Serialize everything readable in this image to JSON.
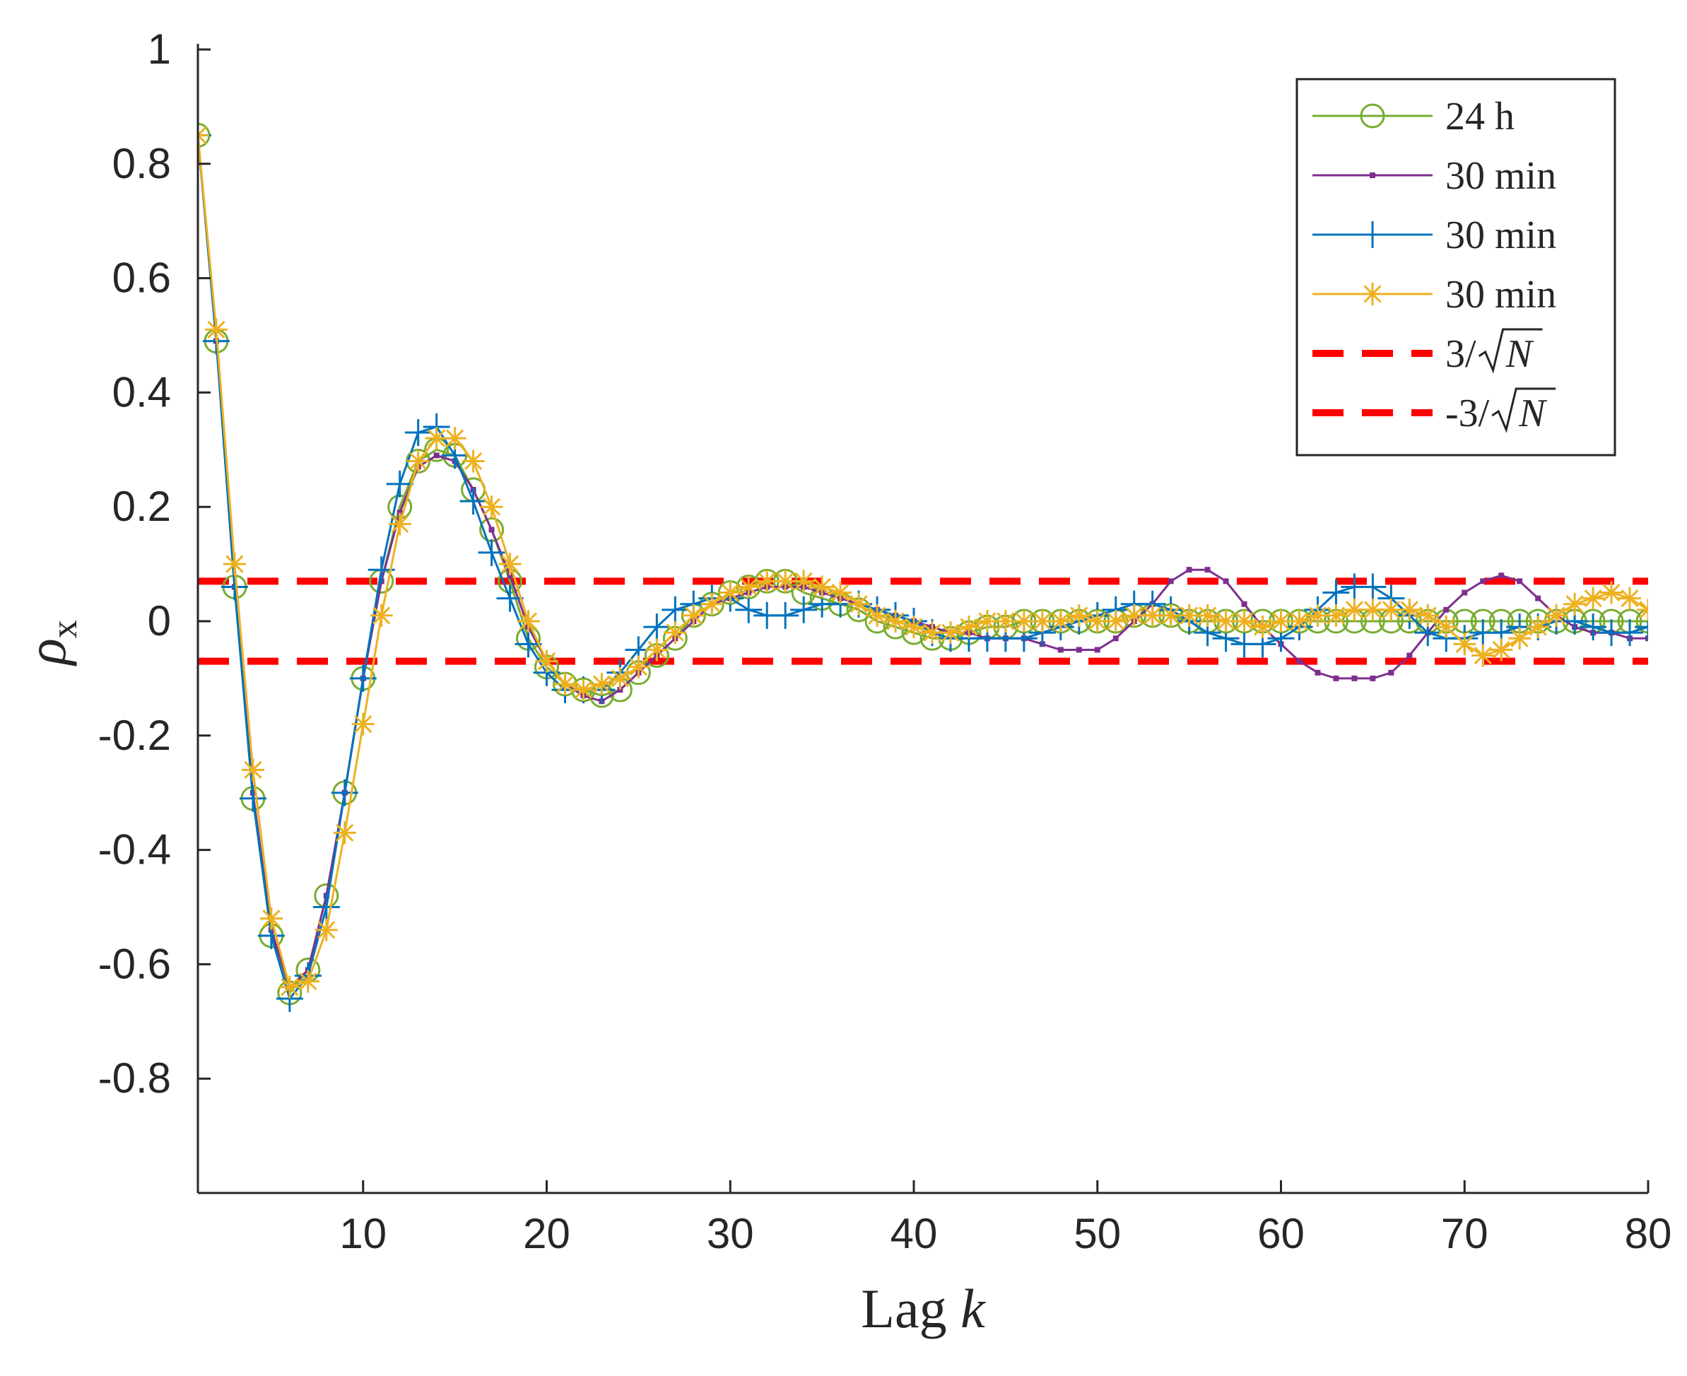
{
  "chart_data": {
    "type": "line",
    "title": "",
    "xlabel": "Lag",
    "xlabel_var": "k",
    "ylabel": "ρ",
    "ylabel_sub": "x",
    "xlim": [
      1,
      80
    ],
    "ylim": [
      -1,
      1
    ],
    "xticks": [
      10,
      20,
      30,
      40,
      50,
      60,
      70,
      80
    ],
    "xtick_labels": [
      "10",
      "20",
      "30",
      "40",
      "50",
      "60",
      "70",
      "80"
    ],
    "yticks": [
      1,
      0.8,
      0.6,
      0.4,
      0.2,
      0,
      -0.2,
      -0.4,
      -0.6,
      -0.8
    ],
    "ytick_labels": [
      "1",
      "0.8",
      "0.6",
      "0.4",
      "0.2",
      "0",
      "-0.2",
      "-0.4",
      "-0.6",
      "-0.8"
    ],
    "grid": false,
    "legend_position": "top-right",
    "series": [
      {
        "name": "24 h",
        "color": "#77AC30",
        "marker": "circle",
        "x": [
          1,
          2,
          3,
          4,
          5,
          6,
          7,
          8,
          9,
          10,
          11,
          12,
          13,
          14,
          15,
          16,
          17,
          18,
          19,
          20,
          21,
          22,
          23,
          24,
          25,
          26,
          27,
          28,
          29,
          30,
          31,
          32,
          33,
          34,
          35,
          36,
          37,
          38,
          39,
          40,
          41,
          42,
          43,
          44,
          45,
          46,
          47,
          48,
          49,
          50,
          51,
          52,
          53,
          54,
          55,
          56,
          57,
          58,
          59,
          60,
          61,
          62,
          63,
          64,
          65,
          66,
          67,
          68,
          69,
          70,
          71,
          72,
          73,
          74,
          75,
          76,
          77,
          78,
          79,
          80
        ],
        "values": [
          0.85,
          0.49,
          0.06,
          -0.31,
          -0.55,
          -0.65,
          -0.61,
          -0.48,
          -0.3,
          -0.1,
          0.07,
          0.2,
          0.28,
          0.3,
          0.29,
          0.23,
          0.16,
          0.07,
          -0.03,
          -0.08,
          -0.11,
          -0.12,
          -0.13,
          -0.12,
          -0.09,
          -0.06,
          -0.03,
          0.01,
          0.03,
          0.05,
          0.06,
          0.07,
          0.07,
          0.05,
          0.04,
          0.03,
          0.02,
          0.0,
          -0.01,
          -0.02,
          -0.03,
          -0.03,
          -0.02,
          -0.01,
          -0.01,
          0.0,
          0.0,
          0.0,
          0.0,
          0.0,
          0.0,
          0.01,
          0.01,
          0.01,
          0.0,
          0.0,
          0.0,
          0.0,
          0.0,
          0.0,
          0.0,
          0.0,
          0.0,
          0.0,
          0.0,
          0.0,
          0.0,
          0.0,
          0.0,
          0.0,
          0.0,
          0.0,
          0.0,
          0.0,
          0.0,
          0.0,
          0.0,
          0.0,
          0.0,
          0.0
        ]
      },
      {
        "name": "30 min",
        "color": "#7E2F8E",
        "marker": "point",
        "x": [
          1,
          2,
          3,
          4,
          5,
          6,
          7,
          8,
          9,
          10,
          11,
          12,
          13,
          14,
          15,
          16,
          17,
          18,
          19,
          20,
          21,
          22,
          23,
          24,
          25,
          26,
          27,
          28,
          29,
          30,
          31,
          32,
          33,
          34,
          35,
          36,
          37,
          38,
          39,
          40,
          41,
          42,
          43,
          44,
          45,
          46,
          47,
          48,
          49,
          50,
          51,
          52,
          53,
          54,
          55,
          56,
          57,
          58,
          59,
          60,
          61,
          62,
          63,
          64,
          65,
          66,
          67,
          68,
          69,
          70,
          71,
          72,
          73,
          74,
          75,
          76,
          77,
          78,
          79,
          80
        ],
        "values": [
          0.85,
          0.49,
          0.06,
          -0.3,
          -0.54,
          -0.64,
          -0.61,
          -0.48,
          -0.3,
          -0.1,
          0.07,
          0.19,
          0.27,
          0.29,
          0.28,
          0.23,
          0.16,
          0.08,
          -0.01,
          -0.07,
          -0.11,
          -0.13,
          -0.14,
          -0.12,
          -0.09,
          -0.06,
          -0.03,
          0.0,
          0.03,
          0.04,
          0.05,
          0.06,
          0.06,
          0.06,
          0.05,
          0.04,
          0.03,
          0.02,
          0.01,
          0.0,
          -0.01,
          -0.02,
          -0.02,
          -0.03,
          -0.03,
          -0.03,
          -0.04,
          -0.05,
          -0.05,
          -0.05,
          -0.03,
          0.0,
          0.03,
          0.07,
          0.09,
          0.09,
          0.07,
          0.03,
          -0.01,
          -0.04,
          -0.07,
          -0.09,
          -0.1,
          -0.1,
          -0.1,
          -0.09,
          -0.06,
          -0.02,
          0.02,
          0.05,
          0.07,
          0.08,
          0.07,
          0.04,
          0.01,
          -0.01,
          -0.02,
          -0.02,
          -0.03,
          -0.03
        ]
      },
      {
        "name": "30 min",
        "color": "#0072BD",
        "marker": "plus",
        "x": [
          1,
          2,
          3,
          4,
          5,
          6,
          7,
          8,
          9,
          10,
          11,
          12,
          13,
          14,
          15,
          16,
          17,
          18,
          19,
          20,
          21,
          22,
          23,
          24,
          25,
          26,
          27,
          28,
          29,
          30,
          31,
          32,
          33,
          34,
          35,
          36,
          37,
          38,
          39,
          40,
          41,
          42,
          43,
          44,
          45,
          46,
          47,
          48,
          49,
          50,
          51,
          52,
          53,
          54,
          55,
          56,
          57,
          58,
          59,
          60,
          61,
          62,
          63,
          64,
          65,
          66,
          67,
          68,
          69,
          70,
          71,
          72,
          73,
          74,
          75,
          76,
          77,
          78,
          79,
          80
        ],
        "values": [
          0.85,
          0.49,
          0.06,
          -0.31,
          -0.55,
          -0.66,
          -0.62,
          -0.5,
          -0.3,
          -0.1,
          0.09,
          0.24,
          0.33,
          0.34,
          0.29,
          0.21,
          0.12,
          0.04,
          -0.04,
          -0.09,
          -0.12,
          -0.12,
          -0.12,
          -0.09,
          -0.05,
          -0.01,
          0.02,
          0.03,
          0.04,
          0.04,
          0.02,
          0.01,
          0.01,
          0.02,
          0.03,
          0.03,
          0.03,
          0.02,
          0.01,
          0.0,
          -0.02,
          -0.03,
          -0.03,
          -0.03,
          -0.03,
          -0.03,
          -0.02,
          -0.01,
          0.0,
          0.01,
          0.02,
          0.03,
          0.03,
          0.02,
          0.0,
          -0.02,
          -0.03,
          -0.04,
          -0.04,
          -0.03,
          -0.01,
          0.02,
          0.05,
          0.06,
          0.06,
          0.04,
          0.01,
          -0.02,
          -0.03,
          -0.03,
          -0.02,
          -0.02,
          -0.01,
          -0.01,
          0.0,
          0.0,
          -0.01,
          -0.02,
          -0.02,
          -0.01
        ]
      },
      {
        "name": "30 min",
        "color": "#EDB120",
        "marker": "star",
        "x": [
          1,
          2,
          3,
          4,
          5,
          6,
          7,
          8,
          9,
          10,
          11,
          12,
          13,
          14,
          15,
          16,
          17,
          18,
          19,
          20,
          21,
          22,
          23,
          24,
          25,
          26,
          27,
          28,
          29,
          30,
          31,
          32,
          33,
          34,
          35,
          36,
          37,
          38,
          39,
          40,
          41,
          42,
          43,
          44,
          45,
          46,
          47,
          48,
          49,
          50,
          51,
          52,
          53,
          54,
          55,
          56,
          57,
          58,
          59,
          60,
          61,
          62,
          63,
          64,
          65,
          66,
          67,
          68,
          69,
          70,
          71,
          72,
          73,
          74,
          75,
          76,
          77,
          78,
          79,
          80
        ],
        "values": [
          0.85,
          0.51,
          0.1,
          -0.26,
          -0.52,
          -0.64,
          -0.63,
          -0.54,
          -0.37,
          -0.18,
          0.01,
          0.17,
          0.28,
          0.32,
          0.32,
          0.28,
          0.2,
          0.1,
          0.0,
          -0.07,
          -0.11,
          -0.12,
          -0.11,
          -0.1,
          -0.08,
          -0.05,
          -0.02,
          0.01,
          0.03,
          0.05,
          0.06,
          0.07,
          0.07,
          0.07,
          0.06,
          0.05,
          0.03,
          0.01,
          0.0,
          -0.01,
          -0.02,
          -0.02,
          -0.01,
          0.0,
          0.0,
          0.0,
          0.0,
          0.0,
          0.01,
          0.0,
          0.0,
          0.01,
          0.01,
          0.01,
          0.01,
          0.01,
          0.0,
          0.0,
          -0.01,
          0.0,
          0.0,
          0.01,
          0.01,
          0.02,
          0.02,
          0.02,
          0.02,
          0.01,
          -0.01,
          -0.04,
          -0.06,
          -0.05,
          -0.03,
          -0.01,
          0.01,
          0.03,
          0.04,
          0.05,
          0.04,
          0.02
        ]
      },
      {
        "name": "3/√N",
        "label_num": "3/",
        "label_rad": "N",
        "color": "#FF0000",
        "style": "dashed",
        "x": [
          1,
          80
        ],
        "values": [
          0.07,
          0.07
        ]
      },
      {
        "name": "-3/√N",
        "label_num": "-3/",
        "label_rad": "N",
        "color": "#FF0000",
        "style": "dashed",
        "x": [
          1,
          80
        ],
        "values": [
          -0.07,
          -0.07
        ]
      }
    ]
  }
}
